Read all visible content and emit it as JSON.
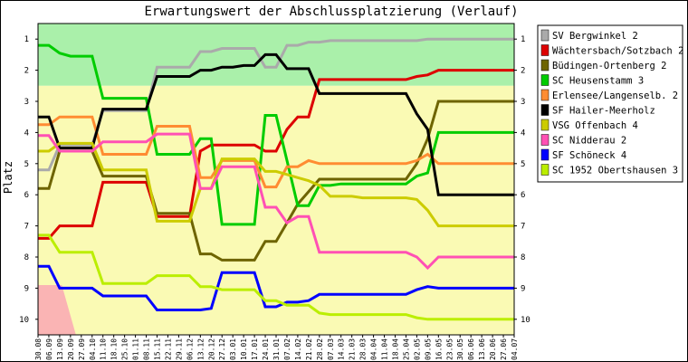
{
  "chart_data": {
    "type": "line",
    "title": "Erwartungswert der Abschlussplatzierung (Verlauf)",
    "xlabel": "",
    "ylabel": "Platz",
    "ylim": [
      0.5,
      10.5
    ],
    "y_inverted": true,
    "yticks": [
      1,
      2,
      3,
      4,
      5,
      6,
      7,
      8,
      9,
      10
    ],
    "ytick_labels": [
      "1",
      "2",
      "3",
      "4",
      "5",
      "6",
      "7",
      "8",
      "9",
      "10"
    ],
    "grid": false,
    "legend_position": "right",
    "x": [
      "30.08",
      "06.09",
      "13.09",
      "20.09",
      "27.09",
      "04.10",
      "11.10",
      "18.10",
      "25.10",
      "01.11",
      "08.11",
      "15.11",
      "22.11",
      "29.11",
      "06.12",
      "13.12",
      "20.12",
      "27.12",
      "03.01",
      "10.01",
      "17.01",
      "24.01",
      "31.01",
      "07.02",
      "14.02",
      "21.02",
      "28.02",
      "07.03",
      "14.03",
      "21.03",
      "28.03",
      "04.04",
      "11.04",
      "18.04",
      "25.04",
      "02.05",
      "09.05",
      "16.05",
      "23.05",
      "30.05",
      "06.06",
      "13.06",
      "20.06",
      "27.06",
      "04.07"
    ],
    "background_bands": [
      {
        "from": 0.5,
        "to": 2.5,
        "color": "#aaf0aa"
      },
      {
        "from": 2.5,
        "to": 10.5,
        "color": "#fafab4"
      }
    ],
    "relegation_area": {
      "color": "#fab4b4",
      "from_x": 0,
      "to_x": 3.5,
      "y_from": 8.9,
      "y_to": 10.5
    },
    "series": [
      {
        "name": "SV Bergwinkel 2",
        "color": "#aaaaaa",
        "values": [
          5.2,
          5.2,
          4.4,
          4.4,
          4.4,
          4.4,
          3.3,
          3.3,
          3.3,
          3.3,
          3.3,
          1.9,
          1.9,
          1.9,
          1.9,
          1.4,
          1.4,
          1.3,
          1.3,
          1.3,
          1.3,
          1.9,
          1.9,
          1.2,
          1.2,
          1.1,
          1.1,
          1.05,
          1.05,
          1.05,
          1.05,
          1.05,
          1.05,
          1.05,
          1.05,
          1.05,
          1.0,
          1.0,
          1.0,
          1.0,
          1.0,
          1.0,
          1.0,
          1.0,
          1.0
        ]
      },
      {
        "name": "Wächtersbach/Sotzbach 2",
        "color": "#dd0000",
        "values": [
          7.4,
          7.4,
          7.0,
          7.0,
          7.0,
          7.0,
          5.6,
          5.6,
          5.6,
          5.6,
          5.6,
          6.7,
          6.7,
          6.7,
          6.7,
          4.6,
          4.4,
          4.4,
          4.4,
          4.4,
          4.4,
          4.6,
          4.6,
          3.9,
          3.5,
          3.5,
          2.3,
          2.3,
          2.3,
          2.3,
          2.3,
          2.3,
          2.3,
          2.3,
          2.3,
          2.2,
          2.15,
          2.0,
          2.0,
          2.0,
          2.0,
          2.0,
          2.0,
          2.0,
          2.0
        ]
      },
      {
        "name": "Büdingen-Ortenberg 2",
        "color": "#6e6400",
        "values": [
          5.8,
          5.8,
          4.6,
          4.6,
          4.6,
          4.6,
          5.4,
          5.4,
          5.4,
          5.4,
          5.4,
          6.6,
          6.6,
          6.6,
          6.6,
          7.9,
          7.9,
          8.1,
          8.1,
          8.1,
          8.1,
          7.5,
          7.5,
          6.9,
          6.3,
          5.9,
          5.5,
          5.5,
          5.5,
          5.5,
          5.5,
          5.5,
          5.5,
          5.5,
          5.5,
          5.0,
          4.2,
          3.0,
          3.0,
          3.0,
          3.0,
          3.0,
          3.0,
          3.0,
          3.0
        ]
      },
      {
        "name": "SC Heusenstamm 3",
        "color": "#00cc00",
        "values": [
          1.2,
          1.2,
          1.45,
          1.55,
          1.55,
          1.55,
          2.9,
          2.9,
          2.9,
          2.9,
          2.9,
          4.7,
          4.7,
          4.7,
          4.7,
          4.2,
          4.2,
          6.95,
          6.95,
          6.95,
          6.95,
          3.45,
          3.45,
          4.9,
          6.35,
          6.35,
          5.7,
          5.7,
          5.65,
          5.65,
          5.65,
          5.65,
          5.65,
          5.65,
          5.65,
          5.4,
          5.3,
          4.0,
          4.0,
          4.0,
          4.0,
          4.0,
          4.0,
          4.0,
          4.0
        ]
      },
      {
        "name": "Erlensee/Langenselb. 2",
        "color": "#ff8c32",
        "values": [
          3.75,
          3.75,
          3.5,
          3.5,
          3.5,
          3.5,
          4.7,
          4.7,
          4.7,
          4.7,
          4.7,
          3.8,
          3.8,
          3.8,
          3.8,
          5.45,
          5.45,
          4.9,
          4.9,
          4.9,
          4.9,
          5.75,
          5.75,
          5.1,
          5.1,
          4.9,
          5.0,
          5.0,
          5.0,
          5.0,
          5.0,
          5.0,
          5.0,
          5.0,
          5.0,
          4.9,
          4.7,
          5.0,
          5.0,
          5.0,
          5.0,
          5.0,
          5.0,
          5.0,
          5.0
        ]
      },
      {
        "name": "SF Hailer-Meerholz",
        "color": "#000000",
        "values": [
          3.5,
          3.5,
          4.5,
          4.5,
          4.5,
          4.5,
          3.25,
          3.25,
          3.25,
          3.25,
          3.25,
          2.2,
          2.2,
          2.2,
          2.2,
          2.0,
          2.0,
          1.9,
          1.9,
          1.85,
          1.85,
          1.5,
          1.5,
          1.95,
          1.95,
          1.95,
          2.75,
          2.75,
          2.75,
          2.75,
          2.75,
          2.75,
          2.75,
          2.75,
          2.75,
          3.4,
          3.9,
          6.0,
          6.0,
          6.0,
          6.0,
          6.0,
          6.0,
          6.0,
          6.0
        ]
      },
      {
        "name": "VSG Offenbach 4",
        "color": "#cccc00",
        "values": [
          4.6,
          4.6,
          4.35,
          4.35,
          4.35,
          4.35,
          5.2,
          5.2,
          5.2,
          5.2,
          5.2,
          6.85,
          6.85,
          6.85,
          6.85,
          5.8,
          5.8,
          4.85,
          4.85,
          4.85,
          4.85,
          5.25,
          5.25,
          5.35,
          5.45,
          5.55,
          5.7,
          6.05,
          6.05,
          6.05,
          6.1,
          6.1,
          6.1,
          6.1,
          6.1,
          6.15,
          6.5,
          7.0,
          7.0,
          7.0,
          7.0,
          7.0,
          7.0,
          7.0,
          7.0
        ]
      },
      {
        "name": "SC Nidderau 2",
        "color": "#ff50b4",
        "values": [
          4.1,
          4.1,
          4.6,
          4.6,
          4.6,
          4.6,
          4.3,
          4.3,
          4.3,
          4.3,
          4.3,
          4.05,
          4.05,
          4.05,
          4.05,
          5.8,
          5.8,
          5.1,
          5.1,
          5.1,
          5.1,
          6.4,
          6.4,
          6.9,
          6.7,
          6.7,
          7.85,
          7.85,
          7.85,
          7.85,
          7.85,
          7.85,
          7.85,
          7.85,
          7.85,
          8.0,
          8.35,
          8.0,
          8.0,
          8.0,
          8.0,
          8.0,
          8.0,
          8.0,
          8.0
        ]
      },
      {
        "name": "SF Schöneck 4",
        "color": "#0000ff",
        "values": [
          8.3,
          8.3,
          9.0,
          9.0,
          9.0,
          9.0,
          9.25,
          9.25,
          9.25,
          9.25,
          9.25,
          9.7,
          9.7,
          9.7,
          9.7,
          9.7,
          9.65,
          8.5,
          8.5,
          8.5,
          8.5,
          9.6,
          9.6,
          9.45,
          9.45,
          9.4,
          9.2,
          9.2,
          9.2,
          9.2,
          9.2,
          9.2,
          9.2,
          9.2,
          9.2,
          9.05,
          8.95,
          9.0,
          9.0,
          9.0,
          9.0,
          9.0,
          9.0,
          9.0,
          9.0
        ]
      },
      {
        "name": "SC 1952 Obertshausen 3",
        "color": "#bbee00",
        "values": [
          7.3,
          7.3,
          7.85,
          7.85,
          7.85,
          7.85,
          8.85,
          8.85,
          8.85,
          8.85,
          8.85,
          8.6,
          8.6,
          8.6,
          8.6,
          8.95,
          8.95,
          9.05,
          9.05,
          9.05,
          9.05,
          9.4,
          9.4,
          9.55,
          9.55,
          9.55,
          9.8,
          9.85,
          9.85,
          9.85,
          9.85,
          9.85,
          9.85,
          9.85,
          9.85,
          9.95,
          10.0,
          10.0,
          10.0,
          10.0,
          10.0,
          10.0,
          10.0,
          10.0,
          10.0
        ]
      }
    ]
  }
}
